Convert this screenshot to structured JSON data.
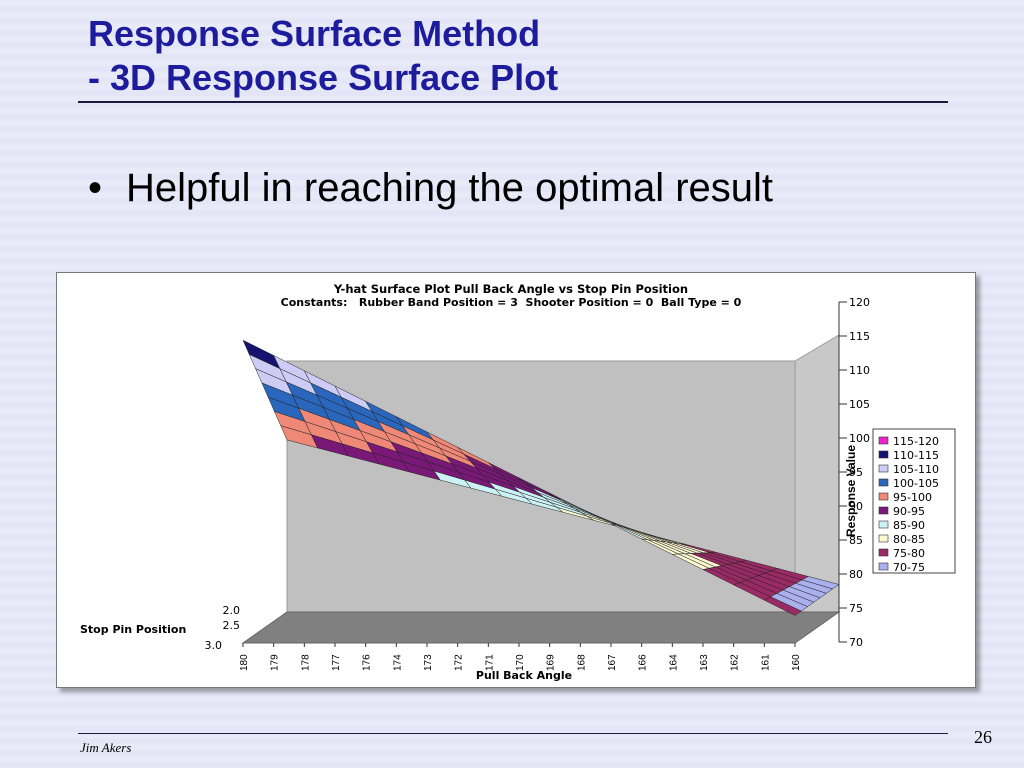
{
  "slide": {
    "title_line1": "Response Surface Method",
    "title_line2": "- 3D Response Surface Plot",
    "bullet": "Helpful in reaching the optimal result",
    "author": "Jim Akers",
    "page_number": "26"
  },
  "chart_data": {
    "type": "surface",
    "title": "Y-hat Surface Plot Pull Back Angle vs Stop Pin Position",
    "subtitle": "Constants:   Rubber Band Position = 3  Shooter Position = 0  Ball Type = 0",
    "xlabel": "Pull Back Angle",
    "depth_label": "Stop Pin Position",
    "zlabel": "Response Value",
    "x_ticks": [
      "180",
      "179",
      "178",
      "177",
      "176",
      "174",
      "173",
      "172",
      "171",
      "170",
      "169",
      "168",
      "167",
      "166",
      "164",
      "163",
      "162",
      "161",
      "160"
    ],
    "depth_ticks": [
      "2.0",
      "2.5",
      "3.0"
    ],
    "z_ticks": [
      "70",
      "75",
      "80",
      "85",
      "90",
      "95",
      "100",
      "105",
      "110",
      "115",
      "120"
    ],
    "zlim": [
      70,
      120
    ],
    "x_range": [
      180,
      160
    ],
    "depth_range": [
      2.0,
      3.0
    ],
    "corner_values": {
      "x180_front": 114,
      "x180_back": 95,
      "x160_front": 74,
      "x160_back": 74
    },
    "legend": [
      {
        "label": "115-120",
        "color": "#ee22cc"
      },
      {
        "label": "110-115",
        "color": "#141470"
      },
      {
        "label": "105-110",
        "color": "#ccccf4"
      },
      {
        "label": "100-105",
        "color": "#2a66bb"
      },
      {
        "label": "95-100",
        "color": "#f08878"
      },
      {
        "label": "90-95",
        "color": "#7a1878"
      },
      {
        "label": "85-90",
        "color": "#ccf2f6"
      },
      {
        "label": "80-85",
        "color": "#fbf7d0"
      },
      {
        "label": "75-80",
        "color": "#9a2a66"
      },
      {
        "label": "70-75",
        "color": "#aab0ee"
      }
    ],
    "legend_position": "right",
    "grid": false
  }
}
